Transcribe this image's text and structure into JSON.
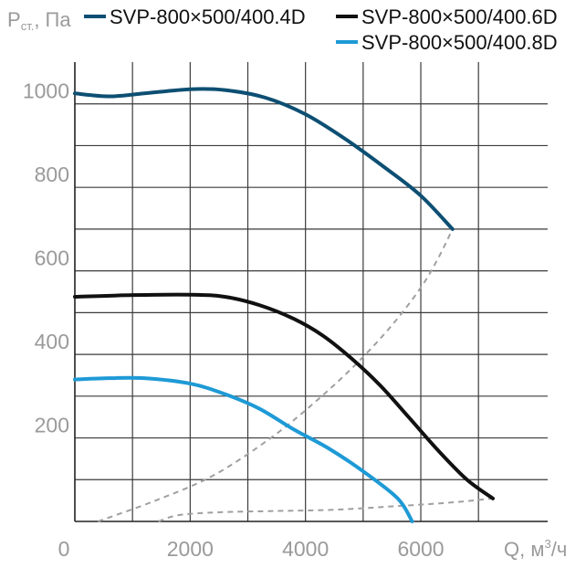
{
  "chart_data": {
    "type": "line",
    "ylabel_main": "P",
    "ylabel_sub": "ст.",
    "ylabel_unit": ", Па",
    "xlabel_main": "Q, м",
    "xlabel_sup": "3",
    "xlabel_unit": "/ч",
    "xlim": [
      0,
      8200
    ],
    "ylim": [
      0,
      1100
    ],
    "x_ticks": [
      {
        "value": 0,
        "label": "0"
      },
      {
        "value": 2000,
        "label": "2000"
      },
      {
        "value": 4000,
        "label": "4000"
      },
      {
        "value": 6000,
        "label": "6000"
      }
    ],
    "y_ticks": [
      {
        "value": 200,
        "label": "200"
      },
      {
        "value": 400,
        "label": "400"
      },
      {
        "value": 600,
        "label": "600"
      },
      {
        "value": 800,
        "label": "800"
      },
      {
        "value": 1000,
        "label": "1000"
      }
    ],
    "grid": true,
    "legend_position": "top",
    "series": [
      {
        "name": "SVP-800×500/400.4D",
        "color": "#0d4f73",
        "points": [
          [
            0,
            1025
          ],
          [
            600,
            1018
          ],
          [
            1200,
            1025
          ],
          [
            2000,
            1035
          ],
          [
            2600,
            1033
          ],
          [
            3300,
            1015
          ],
          [
            4000,
            975
          ],
          [
            4700,
            915
          ],
          [
            5400,
            845
          ],
          [
            6000,
            780
          ],
          [
            6550,
            700
          ]
        ]
      },
      {
        "name": "SVP-800×500/400.6D",
        "color": "#111111",
        "points": [
          [
            0,
            538
          ],
          [
            1000,
            542
          ],
          [
            2000,
            543
          ],
          [
            2600,
            538
          ],
          [
            3200,
            518
          ],
          [
            3800,
            485
          ],
          [
            4300,
            445
          ],
          [
            4800,
            390
          ],
          [
            5300,
            325
          ],
          [
            5800,
            248
          ],
          [
            6300,
            170
          ],
          [
            6800,
            100
          ],
          [
            7250,
            55
          ]
        ]
      },
      {
        "name": "SVP-800×500/400.8D",
        "color": "#1e9ad6",
        "points": [
          [
            0,
            340
          ],
          [
            600,
            343
          ],
          [
            1200,
            343
          ],
          [
            2000,
            330
          ],
          [
            2600,
            305
          ],
          [
            3200,
            270
          ],
          [
            3800,
            220
          ],
          [
            4400,
            175
          ],
          [
            5000,
            120
          ],
          [
            5600,
            55
          ],
          [
            5850,
            0
          ]
        ]
      }
    ],
    "system_curves": [
      {
        "color": "#a0a0a0",
        "points": [
          [
            400,
            0
          ],
          [
            1400,
            50
          ],
          [
            2400,
            110
          ],
          [
            3400,
            200
          ],
          [
            4200,
            290
          ],
          [
            4900,
            380
          ],
          [
            5500,
            470
          ],
          [
            6000,
            560
          ],
          [
            6300,
            630
          ],
          [
            6550,
            700
          ]
        ]
      },
      {
        "color": "#a0a0a0",
        "points": [
          [
            1450,
            0
          ],
          [
            1800,
            15
          ],
          [
            2500,
            22
          ],
          [
            3500,
            25
          ],
          [
            4500,
            28
          ],
          [
            5500,
            36
          ],
          [
            6500,
            45
          ],
          [
            7250,
            55
          ]
        ]
      }
    ]
  }
}
